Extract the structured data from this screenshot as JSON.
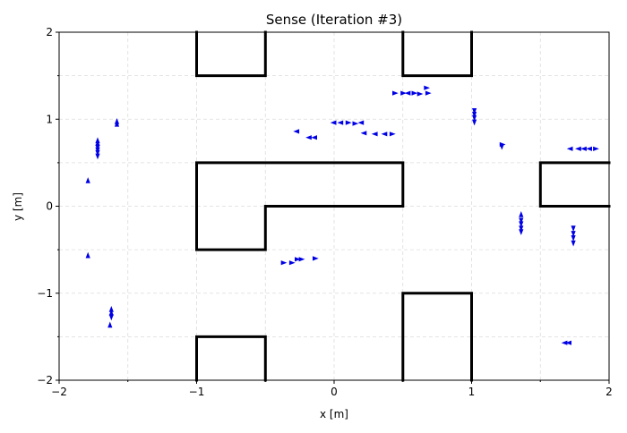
{
  "chart_data": {
    "type": "scatter",
    "title": "Sense (Iteration #3)",
    "xlabel": "x [m]",
    "ylabel": "y [m]",
    "xlim": [
      -2,
      2
    ],
    "ylim": [
      -2,
      2
    ],
    "xticks": [
      -2,
      -1,
      0,
      1,
      2
    ],
    "yticks": [
      -2,
      -1,
      0,
      1,
      2
    ],
    "xtick_labels": [
      "−2",
      "−1",
      "0",
      "1",
      "2"
    ],
    "ytick_labels": [
      "−2",
      "−1",
      "0",
      "1",
      "2"
    ],
    "grid": true,
    "walls": [
      [
        [
          -1,
          2
        ],
        [
          -1,
          1.5
        ],
        [
          -0.5,
          1.5
        ],
        [
          -0.5,
          2
        ]
      ],
      [
        [
          0.5,
          2
        ],
        [
          0.5,
          1.5
        ],
        [
          1,
          1.5
        ],
        [
          1,
          2
        ]
      ],
      [
        [
          -1,
          0.5
        ],
        [
          0.5,
          0.5
        ],
        [
          0.5,
          0
        ],
        [
          -0.5,
          0
        ],
        [
          -0.5,
          -0.5
        ],
        [
          -1,
          -0.5
        ],
        [
          -1,
          0.5
        ]
      ],
      [
        [
          2,
          0.5
        ],
        [
          1.5,
          0.5
        ],
        [
          1.5,
          0
        ],
        [
          2,
          0
        ]
      ],
      [
        [
          0.5,
          -2
        ],
        [
          0.5,
          -1
        ],
        [
          1,
          -1
        ],
        [
          1,
          -2
        ]
      ],
      [
        [
          -1,
          -2
        ],
        [
          -1,
          -1.5
        ],
        [
          -0.5,
          -1.5
        ],
        [
          -0.5,
          -2
        ]
      ]
    ],
    "particles": [
      {
        "x": -1.58,
        "y": 0.97,
        "dir": "up"
      },
      {
        "x": -1.58,
        "y": 0.94,
        "dir": "up"
      },
      {
        "x": -1.72,
        "y": 0.75,
        "dir": "up"
      },
      {
        "x": -1.72,
        "y": 0.72,
        "dir": "up"
      },
      {
        "x": -1.72,
        "y": 0.68,
        "dir": "down"
      },
      {
        "x": -1.72,
        "y": 0.65,
        "dir": "down"
      },
      {
        "x": -1.72,
        "y": 0.62,
        "dir": "down"
      },
      {
        "x": -1.72,
        "y": 0.58,
        "dir": "down"
      },
      {
        "x": -1.79,
        "y": 0.29,
        "dir": "up"
      },
      {
        "x": -1.79,
        "y": -0.57,
        "dir": "up"
      },
      {
        "x": -1.62,
        "y": -1.19,
        "dir": "up"
      },
      {
        "x": -1.62,
        "y": -1.23,
        "dir": "up"
      },
      {
        "x": -1.62,
        "y": -1.27,
        "dir": "down"
      },
      {
        "x": -1.63,
        "y": -1.37,
        "dir": "up"
      },
      {
        "x": -0.27,
        "y": 0.86,
        "dir": "left"
      },
      {
        "x": -0.18,
        "y": 0.79,
        "dir": "left"
      },
      {
        "x": -0.14,
        "y": 0.79,
        "dir": "left"
      },
      {
        "x": 0.0,
        "y": 0.96,
        "dir": "left"
      },
      {
        "x": 0.05,
        "y": 0.96,
        "dir": "left"
      },
      {
        "x": 0.1,
        "y": 0.96,
        "dir": "right"
      },
      {
        "x": 0.15,
        "y": 0.95,
        "dir": "right"
      },
      {
        "x": 0.2,
        "y": 0.96,
        "dir": "left"
      },
      {
        "x": 0.22,
        "y": 0.84,
        "dir": "left"
      },
      {
        "x": 0.3,
        "y": 0.83,
        "dir": "left"
      },
      {
        "x": 0.37,
        "y": 0.83,
        "dir": "left"
      },
      {
        "x": 0.42,
        "y": 0.83,
        "dir": "right"
      },
      {
        "x": 0.44,
        "y": 1.3,
        "dir": "right"
      },
      {
        "x": 0.5,
        "y": 1.3,
        "dir": "right"
      },
      {
        "x": 0.54,
        "y": 1.3,
        "dir": "left"
      },
      {
        "x": 0.58,
        "y": 1.3,
        "dir": "right"
      },
      {
        "x": 0.62,
        "y": 1.29,
        "dir": "right"
      },
      {
        "x": 0.67,
        "y": 1.36,
        "dir": "right"
      },
      {
        "x": 0.68,
        "y": 1.3,
        "dir": "right"
      },
      {
        "x": -0.37,
        "y": -0.65,
        "dir": "right"
      },
      {
        "x": -0.31,
        "y": -0.65,
        "dir": "right"
      },
      {
        "x": -0.27,
        "y": -0.61,
        "dir": "right"
      },
      {
        "x": -0.24,
        "y": -0.61,
        "dir": "right"
      },
      {
        "x": -0.14,
        "y": -0.6,
        "dir": "right"
      },
      {
        "x": 1.02,
        "y": 1.1,
        "dir": "down"
      },
      {
        "x": 1.02,
        "y": 1.06,
        "dir": "down"
      },
      {
        "x": 1.02,
        "y": 1.02,
        "dir": "down"
      },
      {
        "x": 1.02,
        "y": 0.97,
        "dir": "down"
      },
      {
        "x": 1.22,
        "y": 0.71,
        "dir": "right"
      },
      {
        "x": 1.22,
        "y": 0.69,
        "dir": "down"
      },
      {
        "x": 1.36,
        "y": -0.1,
        "dir": "up"
      },
      {
        "x": 1.36,
        "y": -0.16,
        "dir": "down"
      },
      {
        "x": 1.36,
        "y": -0.2,
        "dir": "down"
      },
      {
        "x": 1.36,
        "y": -0.25,
        "dir": "down"
      },
      {
        "x": 1.36,
        "y": -0.29,
        "dir": "down"
      },
      {
        "x": 1.74,
        "y": -0.25,
        "dir": "down"
      },
      {
        "x": 1.74,
        "y": -0.31,
        "dir": "down"
      },
      {
        "x": 1.74,
        "y": -0.36,
        "dir": "down"
      },
      {
        "x": 1.74,
        "y": -0.42,
        "dir": "down"
      },
      {
        "x": 1.72,
        "y": 0.66,
        "dir": "left"
      },
      {
        "x": 1.78,
        "y": 0.66,
        "dir": "left"
      },
      {
        "x": 1.82,
        "y": 0.66,
        "dir": "left"
      },
      {
        "x": 1.86,
        "y": 0.66,
        "dir": "left"
      },
      {
        "x": 1.9,
        "y": 0.66,
        "dir": "right"
      },
      {
        "x": 1.71,
        "y": -1.57,
        "dir": "left"
      },
      {
        "x": 1.68,
        "y": -1.57,
        "dir": "left"
      }
    ],
    "particle_color": "#0000e6",
    "wall_color": "#000000"
  }
}
